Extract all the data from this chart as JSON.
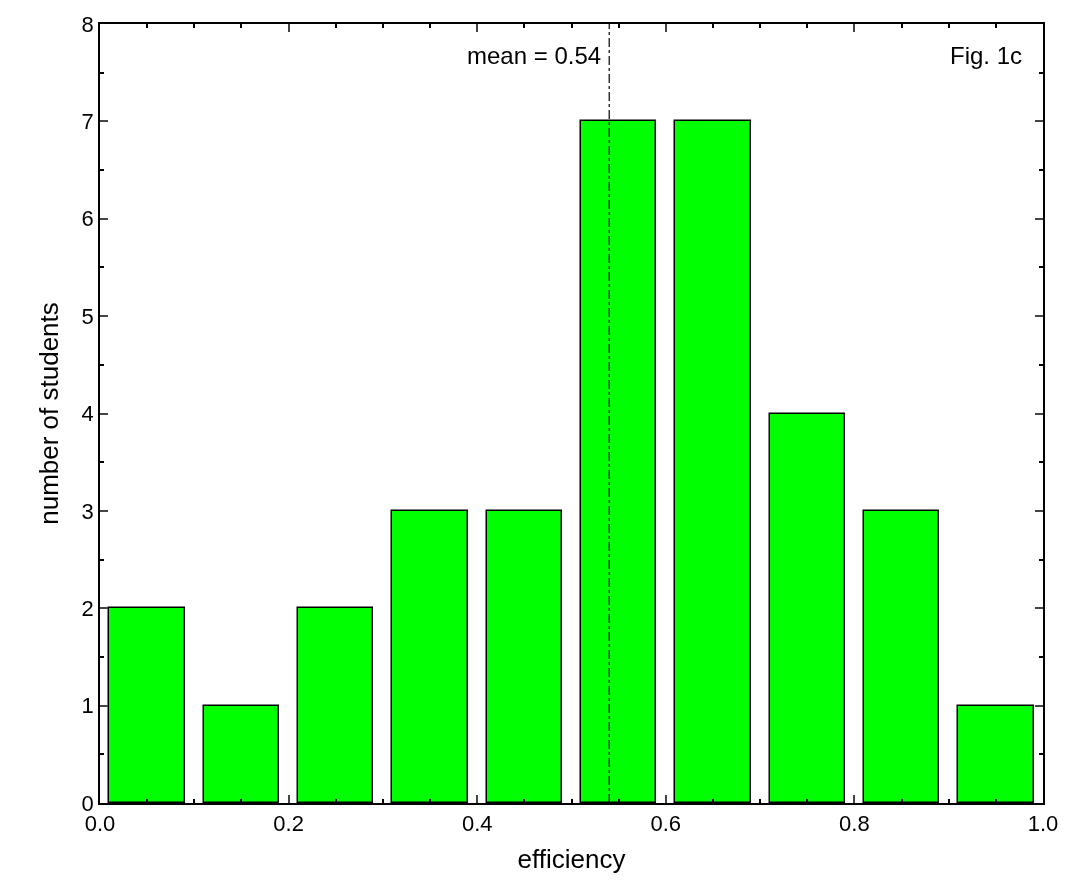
{
  "chart_data": {
    "type": "histogram",
    "xlabel": "efficiency",
    "ylabel": "number of students",
    "bins": [
      0.0,
      0.1,
      0.2,
      0.3,
      0.4,
      0.5,
      0.6,
      0.7,
      0.8,
      0.9,
      1.0
    ],
    "values": [
      2,
      1,
      2,
      3,
      3,
      7,
      7,
      4,
      3,
      1
    ],
    "color": "#00ff00",
    "xlim": [
      0,
      1
    ],
    "xticks": [
      {
        "value": 0,
        "label": "0.0"
      },
      {
        "value": 0.2,
        "label": "0.2"
      },
      {
        "value": 0.4,
        "label": "0.4"
      },
      {
        "value": 0.6,
        "label": "0.6"
      },
      {
        "value": 0.8,
        "label": "0.8"
      },
      {
        "value": 1.0,
        "label": "1.0"
      }
    ],
    "ylim": [
      0,
      8
    ],
    "yticks": [
      0,
      1,
      2,
      3,
      4,
      5,
      6,
      7,
      8
    ],
    "ref_lines": [
      {
        "axis": "x",
        "value": 0.54,
        "label": "mean = 0.54",
        "line_style": "dashdot",
        "color": "#000000"
      }
    ],
    "annotations": [
      "Fig. 1c"
    ]
  }
}
